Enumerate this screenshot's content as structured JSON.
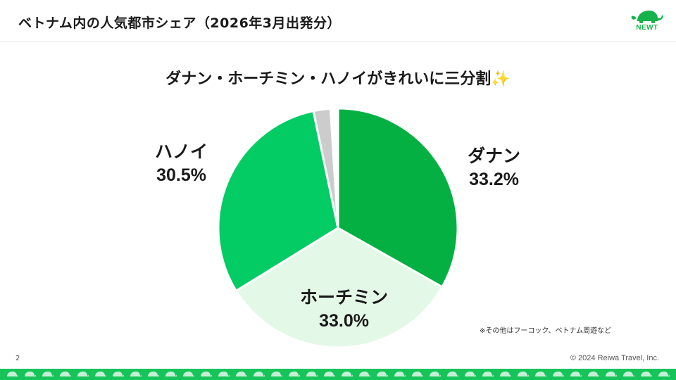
{
  "slide": {
    "title": "ベトナム内の人気都市シェア（2026年3月出発分）",
    "subtitle": "ダナン・ホーチミン・ハノイがきれいに三分割",
    "subtitle_emoji": "✨",
    "note": "※その他はフーコック、ベトナム周遊など",
    "page_number": "2",
    "copyright": "© 2024 Reiwa Travel, Inc.",
    "brand": {
      "logo_text": "NEWT",
      "logo_icon": "turtle-icon",
      "color": "#16b24a",
      "band_color": "#16c45a"
    }
  },
  "chart_data": {
    "type": "pie",
    "title": "",
    "start_angle_deg": 0,
    "direction": "clockwise",
    "slices": [
      {
        "label": "ダナン",
        "value": 33.2,
        "display": "33.2%",
        "color": "#05b043"
      },
      {
        "label": "ホーチミン",
        "value": 33.0,
        "display": "33.0%",
        "color": "#e4f8e7"
      },
      {
        "label": "ハノイ",
        "value": 30.5,
        "display": "30.5%",
        "color": "#03cc64"
      },
      {
        "label": "",
        "value": 2.3,
        "display": "",
        "color": "#cccccc"
      },
      {
        "label": "",
        "value": 1.0,
        "display": "",
        "color": "#ffffff"
      }
    ]
  }
}
